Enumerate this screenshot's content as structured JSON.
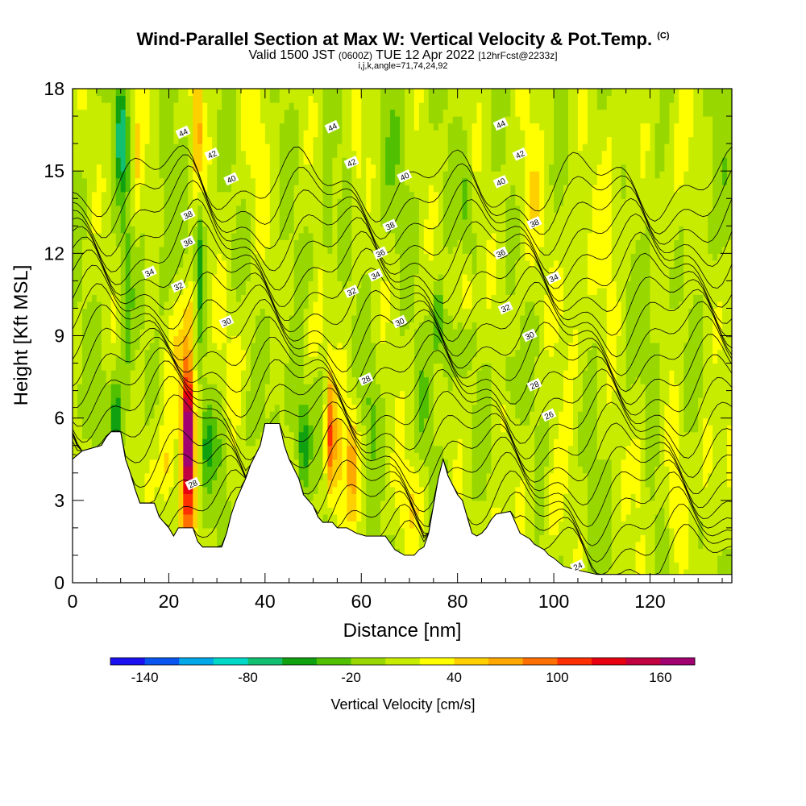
{
  "chart_data": {
    "type": "heatmap",
    "title": "Wind-Parallel Section at Max W: Vertical Velocity & Pot.Temp.",
    "title_tag": "(C)",
    "subtitle_main": "Valid 1500 JST",
    "subtitle_utc": "(0600Z)",
    "subtitle_date": "TUE 12 Apr 2022",
    "subtitle_fcst": "[12hrFcst@2233z]",
    "params": "i,j,k,angle=71,74,24,92",
    "xlabel": "Distance [nm]",
    "ylabel": "Height [Kft MSL]",
    "xlim": [
      0,
      137
    ],
    "ylim": [
      0,
      18
    ],
    "x_ticks": [
      0,
      20,
      40,
      60,
      80,
      100,
      120
    ],
    "x_tick_labels": [
      "0",
      "20",
      "40",
      "60",
      "80",
      "100",
      "120"
    ],
    "y_ticks": [
      0,
      3,
      6,
      9,
      12,
      15,
      18
    ],
    "y_tick_labels": [
      "0",
      "3",
      "6",
      "9",
      "12",
      "15",
      "18"
    ],
    "colorbar": {
      "label": "Vertical Velocity [cm/s]",
      "min": -160,
      "max": 180,
      "step": 20,
      "tick_values": [
        -140,
        -80,
        -20,
        40,
        100,
        160
      ],
      "tick_labels": [
        "-140",
        "-80",
        "-20",
        "40",
        "100",
        "160"
      ],
      "colors": [
        "#1a10f0",
        "#0a55f0",
        "#00a8e8",
        "#00d8c8",
        "#10c070",
        "#10a010",
        "#50c000",
        "#98d800",
        "#c8ec00",
        "#ffff00",
        "#ffd000",
        "#ffa800",
        "#ff7000",
        "#ff3000",
        "#e80010",
        "#c00040",
        "#a00070"
      ]
    },
    "terrain_profile": [
      [
        0,
        4.5
      ],
      [
        2,
        4.8
      ],
      [
        6,
        5.0
      ],
      [
        7,
        5.3
      ],
      [
        8,
        5.5
      ],
      [
        10,
        5.5
      ],
      [
        11,
        4.5
      ],
      [
        12,
        4.0
      ],
      [
        13,
        3.4
      ],
      [
        14,
        2.9
      ],
      [
        17,
        2.9
      ],
      [
        18,
        2.4
      ],
      [
        20,
        2.0
      ],
      [
        21,
        1.7
      ],
      [
        22,
        2.0
      ],
      [
        25,
        2.0
      ],
      [
        26,
        1.5
      ],
      [
        27,
        1.3
      ],
      [
        31,
        1.3
      ],
      [
        32,
        1.8
      ],
      [
        33,
        2.5
      ],
      [
        34,
        3.0
      ],
      [
        36,
        3.8
      ],
      [
        37,
        4.3
      ],
      [
        39,
        5.0
      ],
      [
        40,
        5.8
      ],
      [
        43,
        5.8
      ],
      [
        44,
        5.0
      ],
      [
        45,
        4.5
      ],
      [
        47,
        3.8
      ],
      [
        48,
        3.2
      ],
      [
        50,
        2.8
      ],
      [
        51,
        2.4
      ],
      [
        52,
        2.2
      ],
      [
        54,
        2.2
      ],
      [
        55,
        2.0
      ],
      [
        57,
        2.0
      ],
      [
        59,
        1.8
      ],
      [
        61,
        1.7
      ],
      [
        65,
        1.7
      ],
      [
        67,
        1.2
      ],
      [
        69,
        1.0
      ],
      [
        71,
        1.0
      ],
      [
        72,
        1.2
      ],
      [
        73,
        1.3
      ],
      [
        74,
        1.8
      ],
      [
        75,
        2.8
      ],
      [
        76,
        3.8
      ],
      [
        77,
        4.5
      ],
      [
        78,
        3.9
      ],
      [
        80,
        3.2
      ],
      [
        81,
        3.0
      ],
      [
        82,
        2.4
      ],
      [
        83,
        1.8
      ],
      [
        84,
        1.7
      ],
      [
        85,
        1.8
      ],
      [
        86,
        2.0
      ],
      [
        87,
        2.3
      ],
      [
        88,
        2.5
      ],
      [
        91,
        2.6
      ],
      [
        92,
        2.2
      ],
      [
        93,
        1.8
      ],
      [
        95,
        1.6
      ],
      [
        96,
        1.4
      ],
      [
        98,
        1.2
      ],
      [
        99,
        1.0
      ],
      [
        100,
        0.9
      ],
      [
        102,
        0.6
      ],
      [
        104,
        0.5
      ],
      [
        109,
        0.3
      ],
      [
        120,
        0.3
      ],
      [
        137,
        0.3
      ]
    ],
    "background_w": 5,
    "features": [
      {
        "x": 6,
        "y": 7,
        "sx": 2,
        "sy": 2,
        "w": -15
      },
      {
        "x": 9,
        "y": 6,
        "sx": 1.2,
        "sy": 1.5,
        "w": -60
      },
      {
        "x": 11,
        "y": 10,
        "sx": 1.3,
        "sy": 6,
        "w": -30
      },
      {
        "x": 10,
        "y": 16.5,
        "sx": 1.0,
        "sy": 2,
        "w": -70
      },
      {
        "x": 13.5,
        "y": 15.5,
        "sx": 1.0,
        "sy": 3,
        "w": 30
      },
      {
        "x": 16,
        "y": 4,
        "sx": 2,
        "sy": 2.5,
        "w": 25
      },
      {
        "x": 19,
        "y": 12,
        "sx": 2.0,
        "sy": 3,
        "w": -25
      },
      {
        "x": 19.5,
        "y": 4,
        "sx": 1.5,
        "sy": 1.8,
        "w": 40
      },
      {
        "x": 21,
        "y": 9,
        "sx": 2.2,
        "sy": 2,
        "w": 20
      },
      {
        "x": 24,
        "y": 5.5,
        "sx": 0.9,
        "sy": 1.6,
        "w": 160
      },
      {
        "x": 24,
        "y": 3.5,
        "sx": 1.6,
        "sy": 3.5,
        "w": 90
      },
      {
        "x": 24,
        "y": 8,
        "sx": 1.4,
        "sy": 1.8,
        "w": 60
      },
      {
        "x": 25,
        "y": 10,
        "sx": 1.4,
        "sy": 1.2,
        "w": 40
      },
      {
        "x": 26.5,
        "y": 11.5,
        "sx": 0.9,
        "sy": 2.5,
        "w": -60
      },
      {
        "x": 26,
        "y": 16.5,
        "sx": 1.1,
        "sy": 2.2,
        "w": 60
      },
      {
        "x": 28,
        "y": 5,
        "sx": 1.2,
        "sy": 1.5,
        "w": -40
      },
      {
        "x": 31,
        "y": 4.5,
        "sx": 1.5,
        "sy": 2,
        "w": -25
      },
      {
        "x": 34,
        "y": 8.5,
        "sx": 4,
        "sy": 2,
        "w": 15
      },
      {
        "x": 38,
        "y": 16,
        "sx": 3,
        "sy": 3,
        "w": 20
      },
      {
        "x": 42,
        "y": 8,
        "sx": 2,
        "sy": 2.5,
        "w": -15
      },
      {
        "x": 46,
        "y": 6.5,
        "sx": 1.5,
        "sy": 2,
        "w": -30
      },
      {
        "x": 48,
        "y": 5,
        "sx": 1.2,
        "sy": 1.5,
        "w": -60
      },
      {
        "x": 50,
        "y": 9,
        "sx": 2,
        "sy": 1.2,
        "w": 30
      },
      {
        "x": 53.5,
        "y": 5.5,
        "sx": 0.9,
        "sy": 2.2,
        "w": 80
      },
      {
        "x": 55,
        "y": 4,
        "sx": 1.5,
        "sy": 2.5,
        "w": 40
      },
      {
        "x": 58,
        "y": 4.5,
        "sx": 1.3,
        "sy": 2,
        "w": 60
      },
      {
        "x": 53,
        "y": 13,
        "sx": 1.0,
        "sy": 1.5,
        "w": -40
      },
      {
        "x": 59,
        "y": 16,
        "sx": 1.2,
        "sy": 3,
        "w": 25
      },
      {
        "x": 62,
        "y": 6.5,
        "sx": 1.2,
        "sy": 2,
        "w": -25
      },
      {
        "x": 66,
        "y": 15,
        "sx": 3,
        "sy": 3,
        "w": -15
      },
      {
        "x": 70,
        "y": 3,
        "sx": 3,
        "sy": 1.5,
        "w": 30
      },
      {
        "x": 73,
        "y": 6,
        "sx": 1.5,
        "sy": 2,
        "w": -15
      },
      {
        "x": 76,
        "y": 9.5,
        "sx": 1.0,
        "sy": 1.3,
        "w": -60
      },
      {
        "x": 78,
        "y": 8.5,
        "sx": 1.3,
        "sy": 1.5,
        "w": -40
      },
      {
        "x": 82,
        "y": 10.5,
        "sx": 1.2,
        "sy": 1.2,
        "w": 50
      },
      {
        "x": 82,
        "y": 14,
        "sx": 1.0,
        "sy": 1.5,
        "w": -40
      },
      {
        "x": 79,
        "y": 2.2,
        "sx": 1.5,
        "sy": 1,
        "w": 40
      },
      {
        "x": 88,
        "y": 2.2,
        "sx": 1.2,
        "sy": 1,
        "w": 40
      },
      {
        "x": 91,
        "y": 7.5,
        "sx": 1.5,
        "sy": 1,
        "w": -35
      },
      {
        "x": 95,
        "y": 14,
        "sx": 3,
        "sy": 3,
        "w": 25
      },
      {
        "x": 100,
        "y": 3,
        "sx": 2,
        "sy": 2,
        "w": 30
      },
      {
        "x": 104,
        "y": 10,
        "sx": 3,
        "sy": 3,
        "w": 25
      },
      {
        "x": 108,
        "y": 2,
        "sx": 1.5,
        "sy": 2,
        "w": -15
      },
      {
        "x": 112,
        "y": 14,
        "sx": 3,
        "sy": 4,
        "w": 25
      },
      {
        "x": 118,
        "y": 4,
        "sx": 1.5,
        "sy": 3,
        "w": 25
      },
      {
        "x": 120,
        "y": 10,
        "sx": 3,
        "sy": 4,
        "w": -15
      },
      {
        "x": 125,
        "y": 3,
        "sx": 1.5,
        "sy": 2,
        "w": 30
      },
      {
        "x": 126,
        "y": 15,
        "sx": 3,
        "sy": 3,
        "w": 25
      },
      {
        "x": 132,
        "y": 4,
        "sx": 1.2,
        "sy": 2.5,
        "w": 40
      },
      {
        "x": 133,
        "y": 14,
        "sx": 3,
        "sy": 3,
        "w": -15
      }
    ],
    "contours": {
      "min": 24,
      "max": 46,
      "step": 1,
      "labeled": [
        {
          "value": 44,
          "x": 23,
          "y": 16.4,
          "text": "44"
        },
        {
          "value": 42,
          "x": 29,
          "y": 15.6,
          "text": "42"
        },
        {
          "value": 40,
          "x": 33,
          "y": 14.7,
          "text": "40"
        },
        {
          "value": 38,
          "x": 24,
          "y": 13.4,
          "text": "38"
        },
        {
          "value": 36,
          "x": 24,
          "y": 12.4,
          "text": "36"
        },
        {
          "value": 34,
          "x": 16,
          "y": 11.3,
          "text": "34"
        },
        {
          "value": 32,
          "x": 22,
          "y": 10.8,
          "text": "32"
        },
        {
          "value": 30,
          "x": 32,
          "y": 9.5,
          "text": "30"
        },
        {
          "value": 44,
          "x": 54,
          "y": 16.6,
          "text": "44"
        },
        {
          "value": 42,
          "x": 58,
          "y": 15.3,
          "text": "42"
        },
        {
          "value": 40,
          "x": 69,
          "y": 14.8,
          "text": "40"
        },
        {
          "value": 38,
          "x": 66,
          "y": 13.0,
          "text": "38"
        },
        {
          "value": 36,
          "x": 64,
          "y": 12.0,
          "text": "36"
        },
        {
          "value": 34,
          "x": 63,
          "y": 11.2,
          "text": "34"
        },
        {
          "value": 32,
          "x": 58,
          "y": 10.6,
          "text": "32"
        },
        {
          "value": 30,
          "x": 68,
          "y": 9.5,
          "text": "30"
        },
        {
          "value": 28,
          "x": 61,
          "y": 7.4,
          "text": "28"
        },
        {
          "value": 44,
          "x": 89,
          "y": 16.7,
          "text": "44"
        },
        {
          "value": 42,
          "x": 93,
          "y": 15.6,
          "text": "42"
        },
        {
          "value": 40,
          "x": 89,
          "y": 14.6,
          "text": "40"
        },
        {
          "value": 38,
          "x": 96,
          "y": 13.1,
          "text": "38"
        },
        {
          "value": 36,
          "x": 89,
          "y": 12.0,
          "text": "36"
        },
        {
          "value": 34,
          "x": 100,
          "y": 11.1,
          "text": "34"
        },
        {
          "value": 32,
          "x": 90,
          "y": 10.0,
          "text": "32"
        },
        {
          "value": 30,
          "x": 95,
          "y": 9.0,
          "text": "30"
        },
        {
          "value": 28,
          "x": 96,
          "y": 7.2,
          "text": "28"
        },
        {
          "value": 26,
          "x": 99,
          "y": 6.1,
          "text": "26"
        },
        {
          "value": 28,
          "x": 25,
          "y": 3.6,
          "text": "28"
        },
        {
          "value": 24,
          "x": 105,
          "y": 0.6,
          "text": "24"
        }
      ]
    }
  }
}
